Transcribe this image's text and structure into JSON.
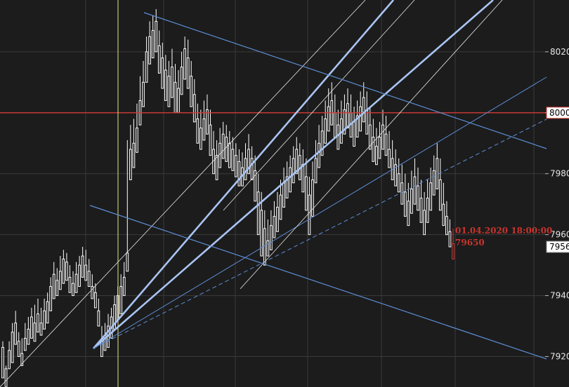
{
  "chart_data": {
    "type": "candlestick",
    "ylim": [
      7910,
      8037
    ],
    "grid": true,
    "y_ticks": [
      "8020",
      "8000",
      "7980",
      "7960",
      "7940",
      "7920"
    ],
    "y_tick_values": [
      8020,
      8000,
      7980,
      7960,
      7940,
      7920
    ],
    "hline_level": 8000,
    "hline_label": "8000",
    "current_price_label": "7956",
    "current_price": 7956,
    "annotation_lines": [
      "01.04.2020 18:00:00",
      "79650"
    ],
    "colors": {
      "background": "#1c1c1c",
      "grid": "#3a3a3a",
      "candle": "#ffffff",
      "last_candle": "#d23b36",
      "hline": "#d23b36",
      "fan": "#a9c4f2",
      "trend": "#5d8ed6",
      "thin": "#e8e8e8",
      "vline": "#e3e08a"
    },
    "candles": [
      [
        7923,
        7925,
        7915,
        7913
      ],
      [
        7916,
        7917,
        7912,
        7910
      ],
      [
        7922,
        7925,
        7918,
        7916
      ],
      [
        7928,
        7931,
        7920,
        7918
      ],
      [
        7931,
        7935,
        7926,
        7924
      ],
      [
        7925,
        7928,
        7922,
        7920
      ],
      [
        7921,
        7926,
        7919,
        7917
      ],
      [
        7926,
        7931,
        7924,
        7922
      ],
      [
        7929,
        7933,
        7926,
        7924
      ],
      [
        7933,
        7936,
        7928,
        7926
      ],
      [
        7931,
        7937,
        7927,
        7925
      ],
      [
        7934,
        7939,
        7930,
        7928
      ],
      [
        7931,
        7936,
        7929,
        7927
      ],
      [
        7935,
        7939,
        7931,
        7929
      ],
      [
        7938,
        7941,
        7933,
        7931
      ],
      [
        7943,
        7946,
        7937,
        7935
      ],
      [
        7947,
        7951,
        7941,
        7939
      ],
      [
        7945,
        7949,
        7942,
        7940
      ],
      [
        7948,
        7953,
        7944,
        7942
      ],
      [
        7952,
        7955,
        7946,
        7944
      ],
      [
        7951,
        7954,
        7947,
        7945
      ],
      [
        7946,
        7950,
        7943,
        7941
      ],
      [
        7944,
        7948,
        7942,
        7940
      ],
      [
        7947,
        7951,
        7943,
        7941
      ],
      [
        7950,
        7953,
        7945,
        7943
      ],
      [
        7953,
        7956,
        7948,
        7946
      ],
      [
        7950,
        7955,
        7947,
        7945
      ],
      [
        7948,
        7952,
        7945,
        7943
      ],
      [
        7943,
        7947,
        7941,
        7939
      ],
      [
        7941,
        7944,
        7938,
        7936
      ],
      [
        7935,
        7939,
        7932,
        7930
      ],
      [
        7925,
        7930,
        7922,
        7920
      ],
      [
        7927,
        7931,
        7924,
        7922
      ],
      [
        7930,
        7934,
        7925,
        7923
      ],
      [
        7933,
        7936,
        7928,
        7926
      ],
      [
        7937,
        7940,
        7931,
        7929
      ],
      [
        7940,
        7943,
        7934,
        7932
      ],
      [
        7943,
        7947,
        7936,
        7934
      ],
      [
        7946,
        7951,
        7942,
        7940
      ],
      [
        7954,
        7991,
        7950,
        7948
      ],
      [
        7988,
        7996,
        7980,
        7978
      ],
      [
        7990,
        7998,
        7984,
        7982
      ],
      [
        7995,
        8003,
        7989,
        7987
      ],
      [
        8004,
        8012,
        7998,
        7996
      ],
      [
        8010,
        8017,
        8004,
        8002
      ],
      [
        8020,
        8025,
        8012,
        8010
      ],
      [
        8025,
        8030,
        8018,
        8016
      ],
      [
        8027,
        8032,
        8020,
        8018
      ],
      [
        8030,
        8034,
        8022,
        8020
      ],
      [
        8022,
        8027,
        8015,
        8013
      ],
      [
        8018,
        8023,
        8010,
        8008
      ],
      [
        8014,
        8019,
        8006,
        8004
      ],
      [
        8012,
        8017,
        8004,
        8002
      ],
      [
        8015,
        8021,
        8007,
        8005
      ],
      [
        8010,
        8016,
        8002,
        8000
      ],
      [
        8008,
        8014,
        8002,
        8000
      ],
      [
        8015,
        8020,
        8008,
        8006
      ],
      [
        8021,
        8025,
        8013,
        8011
      ],
      [
        8018,
        8024,
        8010,
        8008
      ],
      [
        8012,
        8017,
        8004,
        8002
      ],
      [
        8006,
        8011,
        7999,
        7997
      ],
      [
        7998,
        8003,
        7992,
        7990
      ],
      [
        7995,
        8001,
        7990,
        7988
      ],
      [
        7998,
        8004,
        7993,
        7991
      ],
      [
        8001,
        8006,
        7995,
        7993
      ],
      [
        7996,
        8001,
        7988,
        7986
      ],
      [
        7988,
        7994,
        7982,
        7980
      ],
      [
        7986,
        7991,
        7980,
        7978
      ],
      [
        7990,
        7995,
        7984,
        7982
      ],
      [
        7993,
        7997,
        7987,
        7985
      ],
      [
        7992,
        7996,
        7986,
        7984
      ],
      [
        7990,
        7994,
        7984,
        7982
      ],
      [
        7988,
        7992,
        7983,
        7981
      ],
      [
        7986,
        7990,
        7981,
        7979
      ],
      [
        7984,
        7988,
        7978,
        7976
      ],
      [
        7982,
        7987,
        7978,
        7976
      ],
      [
        7985,
        7990,
        7980,
        7978
      ],
      [
        7988,
        7993,
        7982,
        7980
      ],
      [
        7985,
        7989,
        7980,
        7978
      ],
      [
        7981,
        7986,
        7973,
        7971
      ],
      [
        7974,
        7980,
        7962,
        7960
      ],
      [
        7968,
        7974,
        7955,
        7953
      ],
      [
        7962,
        7968,
        7952,
        7950
      ],
      [
        7958,
        7965,
        7955,
        7953
      ],
      [
        7963,
        7968,
        7957,
        7955
      ],
      [
        7966,
        7971,
        7961,
        7959
      ],
      [
        7969,
        7974,
        7963,
        7961
      ],
      [
        7973,
        7978,
        7967,
        7965
      ],
      [
        7977,
        7982,
        7971,
        7969
      ],
      [
        7979,
        7984,
        7974,
        7972
      ],
      [
        7982,
        7986,
        7976,
        7974
      ],
      [
        7985,
        7989,
        7979,
        7977
      ],
      [
        7988,
        7992,
        7982,
        7980
      ],
      [
        7986,
        7990,
        7980,
        7978
      ],
      [
        7983,
        7988,
        7976,
        7974
      ],
      [
        7979,
        7985,
        7970,
        7968
      ],
      [
        7973,
        7979,
        7962,
        7960
      ],
      [
        7978,
        7984,
        7968,
        7966
      ],
      [
        7985,
        7991,
        7979,
        7977
      ],
      [
        7990,
        7996,
        7984,
        7982
      ],
      [
        7994,
        7999,
        7988,
        7986
      ],
      [
        7998,
        8004,
        7992,
        7990
      ],
      [
        8002,
        8008,
        7996,
        7994
      ],
      [
        8004,
        8010,
        7998,
        7996
      ],
      [
        8000,
        8006,
        7994,
        7992
      ],
      [
        7996,
        8001,
        7990,
        7988
      ],
      [
        7998,
        8004,
        7992,
        7990
      ],
      [
        8001,
        8006,
        7995,
        7993
      ],
      [
        8003,
        8008,
        7997,
        7995
      ],
      [
        8000,
        8006,
        7994,
        7992
      ],
      [
        7997,
        8002,
        7991,
        7989
      ],
      [
        7999,
        8004,
        7994,
        7992
      ],
      [
        8002,
        8007,
        7996,
        7994
      ],
      [
        8005,
        8010,
        7999,
        7997
      ],
      [
        8001,
        8007,
        7995,
        7993
      ],
      [
        7996,
        8002,
        7990,
        7988
      ],
      [
        7992,
        7998,
        7986,
        7984
      ],
      [
        7989,
        7995,
        7985,
        7983
      ],
      [
        7992,
        7997,
        7987,
        7985
      ],
      [
        7996,
        8001,
        7990,
        7988
      ],
      [
        7993,
        7999,
        7988,
        7986
      ],
      [
        7988,
        7994,
        7984,
        7982
      ],
      [
        7985,
        7991,
        7980,
        7978
      ],
      [
        7983,
        7988,
        7978,
        7976
      ],
      [
        7980,
        7985,
        7976,
        7974
      ],
      [
        7977,
        7983,
        7972,
        7970
      ],
      [
        7974,
        7980,
        7968,
        7966
      ],
      [
        7971,
        7977,
        7965,
        7963
      ],
      [
        7975,
        7981,
        7969,
        7967
      ],
      [
        7979,
        7985,
        7972,
        7970
      ],
      [
        7976,
        7982,
        7970,
        7968
      ],
      [
        7972,
        7978,
        7966,
        7964
      ],
      [
        7968,
        7974,
        7962,
        7960
      ],
      [
        7972,
        7978,
        7966,
        7964
      ],
      [
        7977,
        7982,
        7970,
        7968
      ],
      [
        7981,
        7986,
        7975,
        7973
      ],
      [
        7985,
        7990,
        7977,
        7975
      ],
      [
        7978,
        7985,
        7970,
        7968
      ],
      [
        7970,
        7977,
        7965,
        7963
      ],
      [
        7966,
        7971,
        7962,
        7960
      ],
      [
        7961,
        7965,
        7958,
        7956
      ],
      [
        7957,
        7962,
        7954,
        7952
      ]
    ]
  }
}
